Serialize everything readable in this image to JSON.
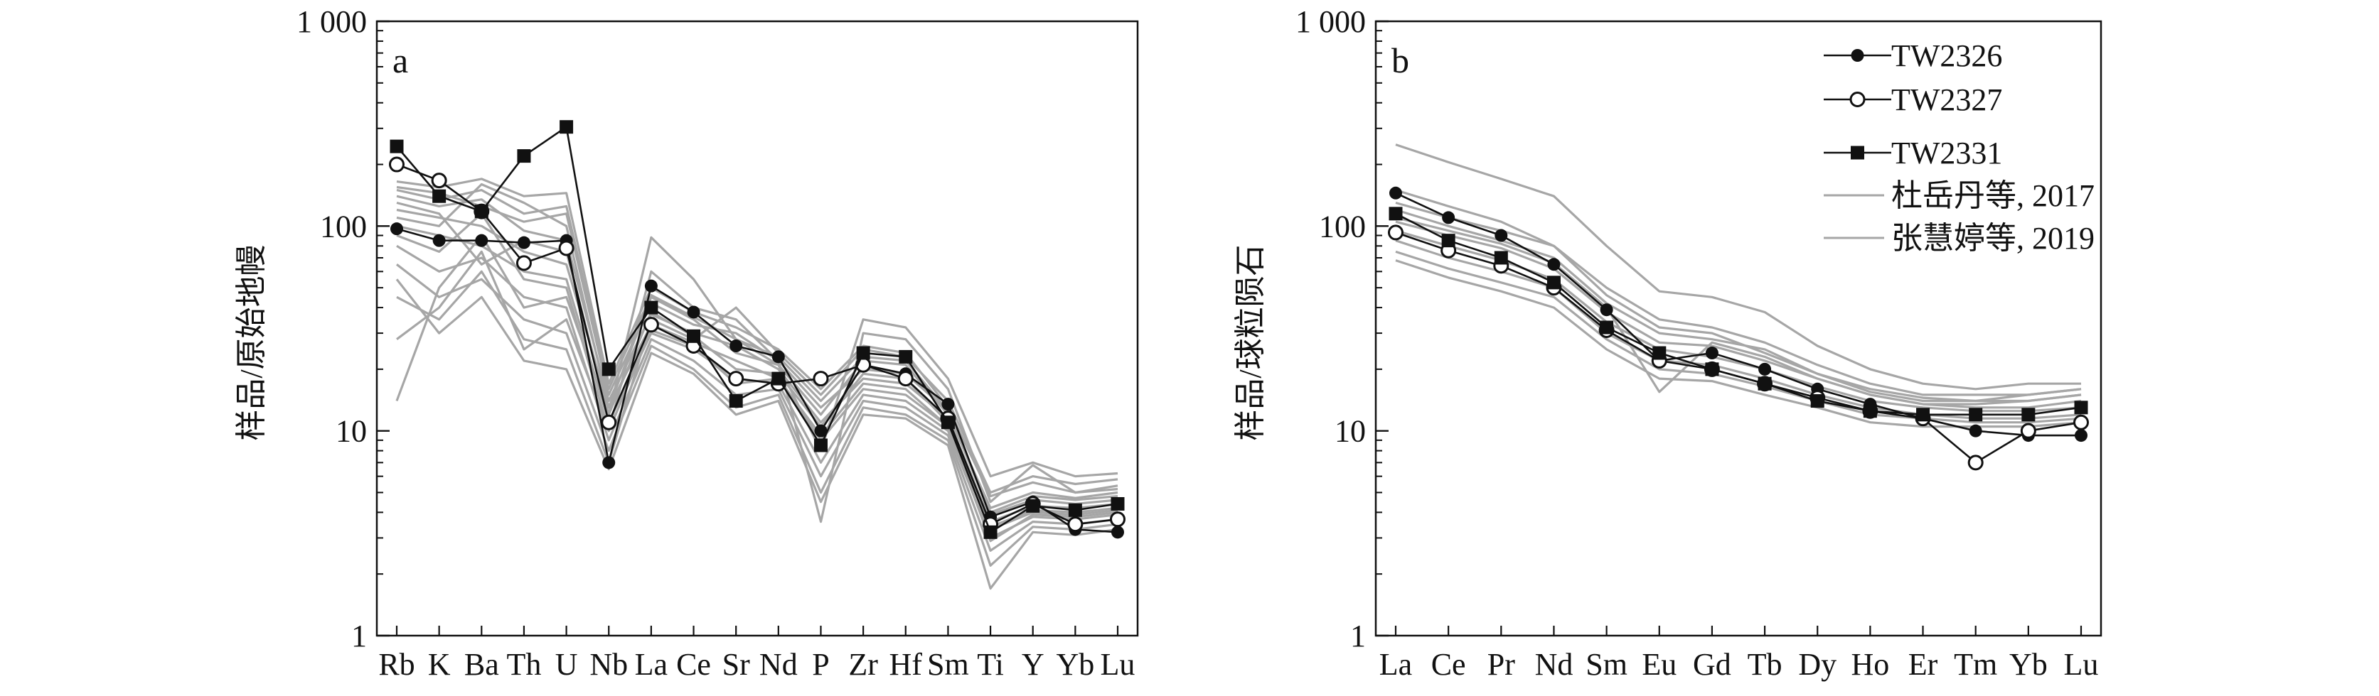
{
  "colors": {
    "sample": "#111111",
    "reference": "#a6a6a6",
    "axis": "#111111"
  },
  "chart_data": [
    {
      "type": "line",
      "panel_label": "a",
      "ylabel": "样品/原始地幔",
      "xlabel": "",
      "yscale": "log",
      "ylim": [
        1,
        1000
      ],
      "yticks": [
        1,
        10,
        100,
        1000
      ],
      "ytick_labels": [
        "1",
        "10",
        "100",
        "1 000"
      ],
      "grid": false,
      "categories": [
        "Rb",
        "K",
        "Ba",
        "Th",
        "U",
        "Nb",
        "La",
        "Ce",
        "Sr",
        "Nd",
        "P",
        "Zr",
        "Hf",
        "Sm",
        "Ti",
        "Y",
        "Yb",
        "Lu"
      ],
      "series": [
        {
          "name": "TW2326",
          "marker": "filled-circle",
          "values": [
            97,
            85,
            85,
            83,
            85,
            7,
            51,
            38,
            26,
            23,
            10,
            21,
            19,
            13.5,
            3.8,
            4.5,
            3.3,
            3.2
          ]
        },
        {
          "name": "TW2327",
          "marker": "open-circle",
          "values": [
            200,
            167,
            118,
            66,
            78,
            11,
            33,
            26,
            18,
            17,
            18,
            21,
            18,
            11.5,
            3.5,
            4.4,
            3.5,
            3.7
          ]
        },
        {
          "name": "TW2331",
          "marker": "filled-square",
          "values": [
            245,
            140,
            118,
            220,
            305,
            20,
            40,
            29,
            14,
            18,
            8.5,
            24,
            23,
            11,
            3.2,
            4.3,
            4.1,
            4.4
          ]
        }
      ],
      "reference_series": [
        [
          155,
          145,
          125,
          105,
          115,
          15,
          42,
          33,
          30,
          22,
          13,
          20,
          19,
          12.5,
          4.0,
          4.8,
          4.6,
          4.8
        ],
        [
          140,
          125,
          135,
          95,
          85,
          14,
          37,
          30,
          26,
          20,
          11,
          18,
          17,
          11.5,
          3.6,
          4.3,
          4.2,
          4.4
        ],
        [
          120,
          110,
          100,
          75,
          65,
          13,
          33,
          27,
          22,
          18,
          9,
          16,
          15,
          10.5,
          3.3,
          4.0,
          3.9,
          4.1
        ],
        [
          100,
          90,
          80,
          60,
          55,
          11,
          30,
          25,
          18,
          17,
          7,
          15,
          14,
          10,
          3.0,
          3.8,
          3.7,
          3.9
        ],
        [
          80,
          60,
          70,
          45,
          40,
          9,
          28,
          22,
          15,
          16,
          6,
          14,
          13,
          9.5,
          2.6,
          3.6,
          3.5,
          3.7
        ],
        [
          65,
          45,
          55,
          35,
          30,
          8,
          26,
          20,
          13,
          15,
          5,
          13,
          12,
          9,
          2.2,
          3.4,
          3.3,
          3.5
        ],
        [
          45,
          35,
          60,
          28,
          25,
          7,
          35,
          28,
          40,
          24,
          15,
          25,
          23,
          14,
          5.0,
          6.0,
          5.5,
          5.8
        ],
        [
          28,
          40,
          75,
          25,
          35,
          10,
          60,
          40,
          35,
          22,
          3.6,
          30,
          28,
          16,
          4.5,
          6.8,
          5.0,
          5.4
        ],
        [
          14,
          50,
          90,
          40,
          45,
          12,
          88,
          55,
          28,
          21,
          8,
          35,
          32,
          18,
          6.0,
          7.0,
          6.0,
          6.2
        ],
        [
          165,
          155,
          170,
          140,
          145,
          17,
          50,
          38,
          32,
          25,
          16,
          26,
          24,
          13,
          4.8,
          5.6,
          5.0,
          5.2
        ],
        [
          110,
          100,
          160,
          130,
          100,
          13,
          45,
          35,
          24,
          21,
          12,
          22,
          21,
          12,
          4.2,
          5.0,
          4.7,
          5.0
        ],
        [
          90,
          75,
          115,
          55,
          50,
          10,
          31,
          26,
          17,
          18,
          9.5,
          17,
          16,
          10.5,
          2.9,
          3.9,
          3.8,
          4.0
        ],
        [
          130,
          115,
          65,
          85,
          75,
          12,
          38,
          29,
          20,
          19,
          10.5,
          19,
          18,
          11,
          3.4,
          4.1,
          4.0,
          4.2
        ],
        [
          150,
          135,
          150,
          115,
          125,
          16,
          46,
          36,
          28,
          23,
          14,
          23,
          22,
          12.5,
          3.9,
          4.6,
          4.4,
          4.6
        ],
        [
          55,
          30,
          45,
          22,
          20,
          6.5,
          24,
          19,
          12,
          14,
          4.5,
          12,
          11.5,
          8.5,
          1.7,
          3.2,
          3.1,
          3.3
        ]
      ]
    },
    {
      "type": "line",
      "panel_label": "b",
      "ylabel": "样品/球粒陨石",
      "xlabel": "",
      "yscale": "log",
      "ylim": [
        1,
        1000
      ],
      "yticks": [
        1,
        10,
        100,
        1000
      ],
      "ytick_labels": [
        "1",
        "10",
        "100",
        "1 000"
      ],
      "grid": false,
      "legend_position": "top-right",
      "legend": [
        {
          "label": "TW2326",
          "marker": "filled-circle"
        },
        {
          "label": "TW2327",
          "marker": "open-circle"
        },
        {
          "label": "TW2331",
          "marker": "filled-square"
        },
        {
          "label": "杜岳丹等, 2017",
          "marker": "gray-line"
        },
        {
          "label": "张慧婷等, 2019",
          "marker": "gray-line"
        }
      ],
      "categories": [
        "La",
        "Ce",
        "Pr",
        "Nd",
        "Sm",
        "Eu",
        "Gd",
        "Tb",
        "Dy",
        "Ho",
        "Er",
        "Tm",
        "Yb",
        "Lu"
      ],
      "series": [
        {
          "name": "TW2326",
          "marker": "filled-circle",
          "values": [
            145,
            110,
            90,
            65,
            39,
            22,
            24,
            20,
            16,
            13.5,
            11.5,
            10,
            9.5,
            9.5
          ]
        },
        {
          "name": "TW2327",
          "marker": "open-circle",
          "values": [
            93,
            76,
            64,
            50,
            31,
            22,
            20,
            17,
            14.5,
            12.5,
            11.5,
            7,
            10,
            11
          ]
        },
        {
          "name": "TW2331",
          "marker": "filled-square",
          "values": [
            115,
            85,
            70,
            53,
            32,
            24,
            20,
            17,
            14,
            12.5,
            12,
            12,
            12,
            13
          ]
        }
      ],
      "reference_series": [
        [
          250,
          205,
          170,
          140,
          80,
          48,
          45,
          38,
          26,
          20,
          17,
          16,
          17,
          17
        ],
        [
          130,
          110,
          95,
          80,
          50,
          35,
          32,
          27,
          21,
          17,
          15,
          15,
          15,
          16
        ],
        [
          120,
          100,
          85,
          70,
          42,
          30,
          28,
          25,
          19,
          15.5,
          14,
          14,
          14,
          15
        ],
        [
          105,
          90,
          78,
          62,
          38,
          27,
          26,
          22,
          18,
          15,
          13.5,
          13,
          13,
          14
        ],
        [
          95,
          80,
          68,
          55,
          34,
          25,
          23,
          20,
          16.5,
          14,
          13,
          12.5,
          12.5,
          13
        ],
        [
          85,
          70,
          60,
          50,
          30,
          22,
          21,
          18,
          15,
          13,
          12,
          11.5,
          11.5,
          12
        ],
        [
          75,
          62,
          53,
          45,
          28,
          20,
          19,
          16.5,
          14,
          12,
          11.5,
          11,
          11,
          11.5
        ],
        [
          68,
          56,
          48,
          40,
          25,
          18,
          17.5,
          15,
          13,
          11,
          10.5,
          10.5,
          10.5,
          11
        ],
        [
          150,
          125,
          105,
          80,
          46,
          32,
          30,
          24,
          19,
          16,
          14.5,
          14,
          15,
          16
        ],
        [
          110,
          95,
          82,
          66,
          40,
          15.5,
          27,
          23,
          18,
          15,
          13.5,
          13.5,
          14,
          15
        ]
      ]
    }
  ]
}
